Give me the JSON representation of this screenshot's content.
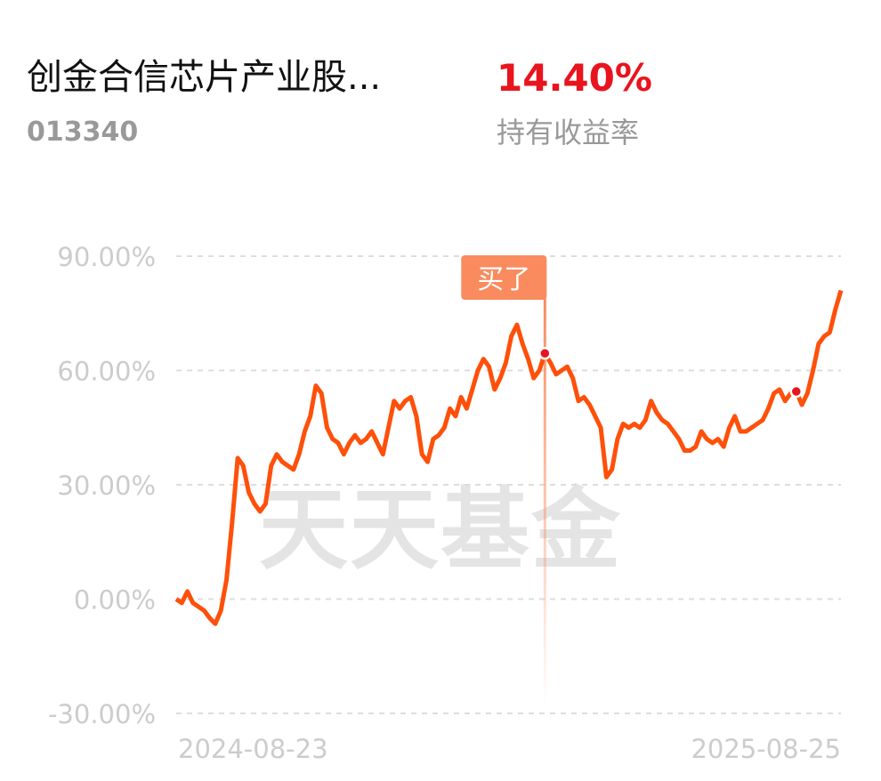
{
  "fund": {
    "name": "创金合信芯片产业股...",
    "code": "013340",
    "return": "14.40%",
    "return_label": "持有收益率"
  },
  "chart_data": {
    "type": "line",
    "watermark": "天天基金",
    "annotation": "买了",
    "categories": [
      "2024-08-23",
      null,
      null,
      null,
      null,
      null,
      null,
      null,
      null,
      null,
      null,
      null,
      null,
      null,
      null,
      null,
      null,
      null,
      null,
      null,
      null,
      null,
      null,
      null,
      null,
      null,
      null,
      null,
      null,
      null,
      null,
      null,
      null,
      null,
      null,
      null,
      null,
      null,
      null,
      null,
      null,
      null,
      null,
      null,
      null,
      null,
      null,
      null,
      null,
      null,
      null,
      null,
      null,
      null,
      null,
      null,
      null,
      null,
      null,
      null,
      null,
      null,
      null,
      null,
      null,
      null,
      null,
      null,
      null,
      null,
      null,
      null,
      null,
      null,
      null,
      null,
      null,
      null,
      null,
      null,
      null,
      null,
      null,
      null,
      null,
      null,
      null,
      null,
      null,
      null,
      null,
      null,
      null,
      null,
      null,
      null,
      null,
      null,
      null,
      null,
      null,
      null,
      null,
      null,
      null,
      null,
      null,
      null,
      null,
      null,
      null,
      null,
      null,
      null,
      null,
      null,
      null,
      null,
      null,
      "2025-08-25"
    ],
    "series": [
      {
        "color": "#fe500a",
        "values": [
          0,
          -1,
          2,
          -1,
          -2,
          -3,
          -5,
          -6.5,
          -3,
          5,
          20,
          37,
          35,
          28,
          25,
          23,
          25,
          35,
          38,
          36,
          35,
          34,
          38,
          44,
          48,
          56,
          54,
          45,
          42,
          41,
          38,
          41,
          43,
          41,
          42,
          44,
          41,
          38,
          45,
          52,
          50,
          52,
          53,
          48,
          38,
          36,
          42,
          43,
          45,
          50,
          48,
          53,
          50,
          55,
          60,
          63,
          61,
          55,
          58,
          62,
          69,
          72,
          67,
          63,
          58,
          60,
          64.5,
          62,
          59,
          60,
          61,
          58,
          52,
          53,
          51,
          48,
          45,
          32,
          34,
          42,
          46,
          45,
          46,
          45,
          47,
          52,
          49,
          47,
          46,
          44,
          42,
          39,
          39,
          40,
          44,
          42,
          41,
          42,
          40,
          45,
          48,
          44,
          44,
          45,
          46,
          47,
          50,
          54,
          55,
          52,
          54,
          54.5,
          51,
          54,
          60,
          67,
          69,
          70,
          76,
          81
        ]
      }
    ],
    "ylim": [
      -30,
      90
    ],
    "yticks": [
      {
        "value": 90,
        "label": "90.00%"
      },
      {
        "value": 60,
        "label": "60.00%"
      },
      {
        "value": 30,
        "label": "30.00%"
      },
      {
        "value": 0,
        "label": "0.00%"
      },
      {
        "value": -30,
        "label": "-30.00%"
      }
    ],
    "grid": true
  }
}
